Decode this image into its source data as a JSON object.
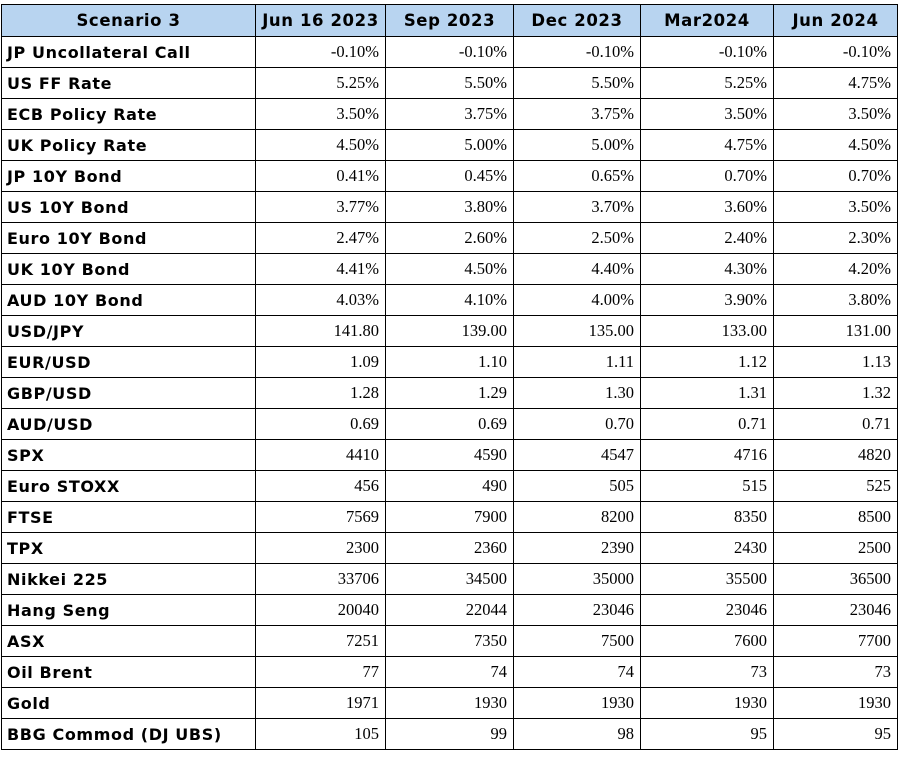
{
  "table": {
    "headers": [
      "Scenario 3",
      "Jun 16 2023",
      "Sep 2023",
      "Dec 2023",
      "Mar2024",
      "Jun 2024"
    ],
    "rows": [
      {
        "label": "JP Uncollateral Call",
        "values": [
          "-0.10%",
          "-0.10%",
          "-0.10%",
          "-0.10%",
          "-0.10%"
        ]
      },
      {
        "label": "US FF Rate",
        "values": [
          "5.25%",
          "5.50%",
          "5.50%",
          "5.25%",
          "4.75%"
        ]
      },
      {
        "label": "ECB Policy Rate",
        "values": [
          "3.50%",
          "3.75%",
          "3.75%",
          "3.50%",
          "3.50%"
        ]
      },
      {
        "label": "UK Policy Rate",
        "values": [
          "4.50%",
          "5.00%",
          "5.00%",
          "4.75%",
          "4.50%"
        ]
      },
      {
        "label": "JP 10Y Bond",
        "values": [
          "0.41%",
          "0.45%",
          "0.65%",
          "0.70%",
          "0.70%"
        ]
      },
      {
        "label": "US 10Y Bond",
        "values": [
          "3.77%",
          "3.80%",
          "3.70%",
          "3.60%",
          "3.50%"
        ]
      },
      {
        "label": "Euro 10Y Bond",
        "values": [
          "2.47%",
          "2.60%",
          "2.50%",
          "2.40%",
          "2.30%"
        ]
      },
      {
        "label": "UK 10Y Bond",
        "values": [
          "4.41%",
          "4.50%",
          "4.40%",
          "4.30%",
          "4.20%"
        ]
      },
      {
        "label": "AUD 10Y Bond",
        "values": [
          "4.03%",
          "4.10%",
          "4.00%",
          "3.90%",
          "3.80%"
        ]
      },
      {
        "label": "USD/JPY",
        "values": [
          "141.80",
          "139.00",
          "135.00",
          "133.00",
          "131.00"
        ]
      },
      {
        "label": "EUR/USD",
        "values": [
          "1.09",
          "1.10",
          "1.11",
          "1.12",
          "1.13"
        ]
      },
      {
        "label": "GBP/USD",
        "values": [
          "1.28",
          "1.29",
          "1.30",
          "1.31",
          "1.32"
        ]
      },
      {
        "label": "AUD/USD",
        "values": [
          "0.69",
          "0.69",
          "0.70",
          "0.71",
          "0.71"
        ]
      },
      {
        "label": "SPX",
        "values": [
          "4410",
          "4590",
          "4547",
          "4716",
          "4820"
        ]
      },
      {
        "label": "Euro STOXX",
        "values": [
          "456",
          "490",
          "505",
          "515",
          "525"
        ]
      },
      {
        "label": "FTSE",
        "values": [
          "7569",
          "7900",
          "8200",
          "8350",
          "8500"
        ]
      },
      {
        "label": "TPX",
        "values": [
          "2300",
          "2360",
          "2390",
          "2430",
          "2500"
        ]
      },
      {
        "label": "Nikkei 225",
        "values": [
          "33706",
          "34500",
          "35000",
          "35500",
          "36500"
        ]
      },
      {
        "label": "Hang Seng",
        "values": [
          "20040",
          "22044",
          "23046",
          "23046",
          "23046"
        ]
      },
      {
        "label": "ASX",
        "values": [
          "7251",
          "7350",
          "7500",
          "7600",
          "7700"
        ]
      },
      {
        "label": "Oil Brent",
        "values": [
          "77",
          "74",
          "74",
          "73",
          "73"
        ]
      },
      {
        "label": "Gold",
        "values": [
          "1971",
          "1930",
          "1930",
          "1930",
          "1930"
        ]
      },
      {
        "label": "BBG Commod (DJ UBS)",
        "values": [
          "105",
          "99",
          "98",
          "95",
          "95"
        ]
      }
    ]
  },
  "colors": {
    "header_bg": "#b8d4f0",
    "border": "#000000",
    "text": "#000000"
  }
}
